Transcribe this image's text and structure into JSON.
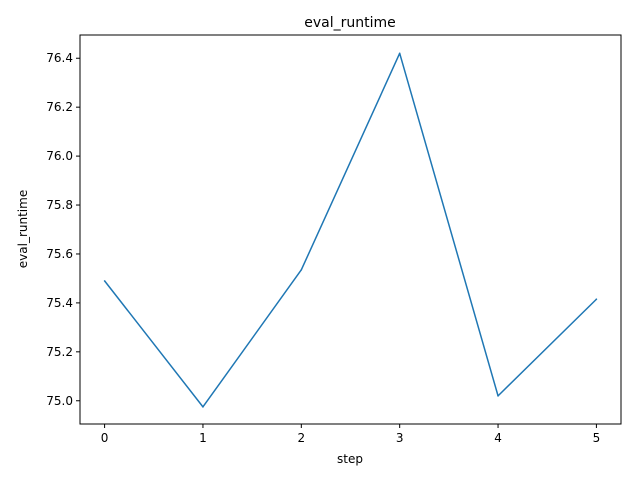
{
  "chart_data": {
    "type": "line",
    "title": "eval_runtime",
    "xlabel": "step",
    "ylabel": "eval_runtime",
    "x": [
      0,
      1,
      2,
      3,
      4,
      5
    ],
    "xticks": [
      0,
      1,
      2,
      3,
      4,
      5
    ],
    "yticks": [
      75.0,
      75.2,
      75.4,
      75.6,
      75.8,
      76.0,
      76.2,
      76.4
    ],
    "ytick_labels": [
      "75.0",
      "75.2",
      "75.4",
      "75.6",
      "75.8",
      "76.0",
      "76.2",
      "76.4"
    ],
    "xlim": [
      -0.25,
      5.25
    ],
    "ylim": [
      74.905,
      76.495
    ],
    "grid": false,
    "series": [
      {
        "values": [
          75.49,
          74.975,
          75.535,
          76.42,
          75.02,
          75.415
        ],
        "color": "#1f77b4"
      }
    ]
  }
}
